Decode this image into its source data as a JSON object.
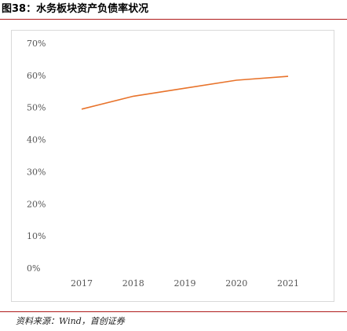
{
  "figure": {
    "title": "图38：水务板块资产负债率状况",
    "source": "资料来源：Wind，首创证券"
  },
  "colors": {
    "line": "#e8732b",
    "rule": "#b01c1c",
    "grid": "#d9d9d9"
  },
  "chart_data": {
    "type": "line",
    "title": "",
    "xlabel": "",
    "ylabel": "",
    "categories": [
      "2017",
      "2018",
      "2019",
      "2020",
      "2021"
    ],
    "series": [
      {
        "values": [
          49.5,
          53.5,
          56,
          58.5,
          59.7
        ]
      }
    ],
    "ylim": [
      0,
      70
    ],
    "y_ticks": [
      0,
      10,
      20,
      30,
      40,
      50,
      60,
      70
    ],
    "y_tick_labels": [
      "0%",
      "10%",
      "20%",
      "30%",
      "40%",
      "50%",
      "60%",
      "70%"
    ],
    "grid": false,
    "legend": "none"
  }
}
